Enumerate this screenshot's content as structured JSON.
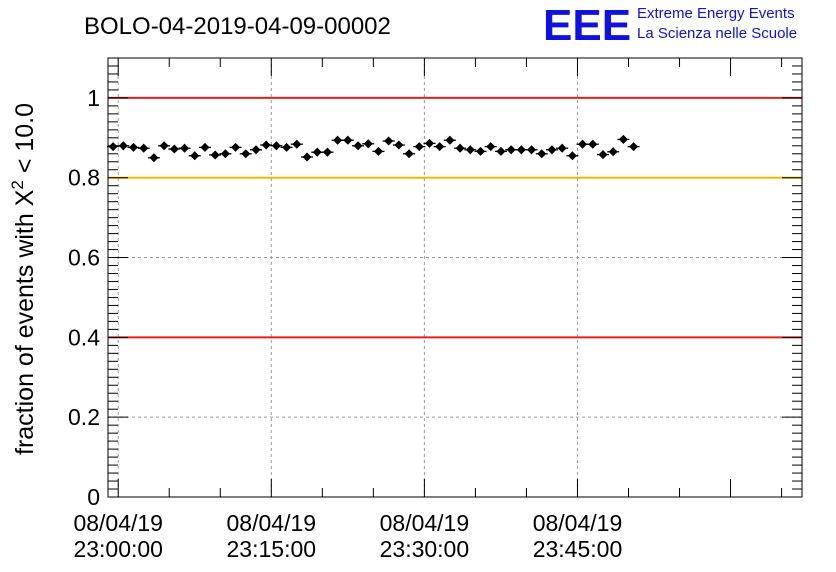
{
  "chart_data": {
    "type": "scatter",
    "title": "BOLO-04-2019-04-09-00002",
    "ylabel": "fraction of events with X² < 10.0",
    "ylabel_main": "fraction of events with X",
    "ylabel_sup": "2",
    "ylabel_tail": " < 10.0",
    "xlabel": "",
    "ylim": [
      0,
      1.1
    ],
    "xlim_minutes": [
      -1,
      67
    ],
    "yticks": [
      0,
      0.2,
      0.4,
      0.6,
      0.8,
      1
    ],
    "ytick_labels": [
      "0",
      "0.2",
      "0.4",
      "0.6",
      "0.8",
      "1"
    ],
    "xticks_minutes": [
      0,
      15,
      30,
      45
    ],
    "xtick_labels": [
      [
        "08/04/19",
        "23:00:00"
      ],
      [
        "08/04/19",
        "23:15:00"
      ],
      [
        "08/04/19",
        "23:30:00"
      ],
      [
        "08/04/19",
        "23:45:00"
      ]
    ],
    "grid": true,
    "reference_lines": [
      {
        "y": 1.0,
        "color": "#e8201c"
      },
      {
        "y": 0.8,
        "color": "#f5b800"
      },
      {
        "y": 0.4,
        "color": "#e8201c"
      }
    ],
    "series": [
      {
        "x_minutes": [
          -0.5,
          0.5,
          1.5,
          2.5,
          3.5,
          4.5,
          5.5,
          6.5,
          7.5,
          8.5,
          9.5,
          10.5,
          11.5,
          12.5,
          13.5,
          14.5,
          15.5,
          16.5,
          17.5,
          18.5,
          19.5,
          20.5,
          21.5,
          22.5,
          23.5,
          24.5,
          25.5,
          26.5,
          27.5,
          28.5,
          29.5,
          30.5,
          31.5,
          32.5,
          33.5,
          34.5,
          35.5,
          36.5,
          37.5,
          38.5,
          39.5,
          40.5,
          41.5,
          42.5,
          43.5,
          44.5,
          45.5,
          46.5,
          47.5,
          48.5,
          49.5,
          50.5
        ],
        "values": [
          0.878,
          0.88,
          0.876,
          0.874,
          0.85,
          0.88,
          0.872,
          0.874,
          0.855,
          0.876,
          0.857,
          0.86,
          0.876,
          0.86,
          0.87,
          0.882,
          0.88,
          0.876,
          0.884,
          0.852,
          0.864,
          0.864,
          0.894,
          0.894,
          0.88,
          0.885,
          0.866,
          0.892,
          0.882,
          0.86,
          0.878,
          0.886,
          0.878,
          0.894,
          0.874,
          0.87,
          0.866,
          0.878,
          0.866,
          0.87,
          0.87,
          0.87,
          0.86,
          0.87,
          0.874,
          0.855,
          0.884,
          0.884,
          0.858,
          0.865,
          0.896,
          0.878
        ],
        "error": 0.008,
        "color": "#000000"
      }
    ]
  },
  "logo": {
    "text": "EEE",
    "line1": "Extreme Energy Events",
    "line2": "La Scienza nelle Scuole",
    "color": "#1010e0"
  }
}
